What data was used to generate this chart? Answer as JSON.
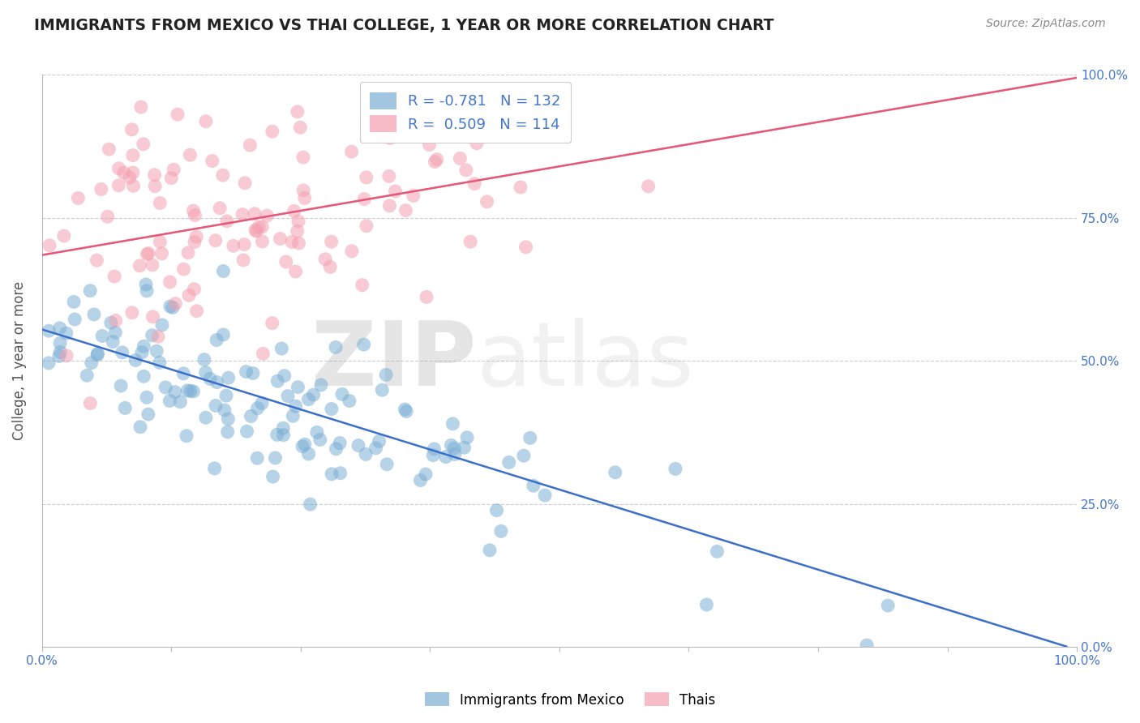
{
  "title": "IMMIGRANTS FROM MEXICO VS THAI COLLEGE, 1 YEAR OR MORE CORRELATION CHART",
  "source_text": "Source: ZipAtlas.com",
  "ylabel": "College, 1 year or more",
  "legend_line1": "R = -0.781   N = 132",
  "legend_line2": "R =  0.509   N = 114",
  "legend_label1": "Immigrants from Mexico",
  "legend_label2": "Thais",
  "xlim": [
    0.0,
    1.0
  ],
  "ylim": [
    0.0,
    1.0
  ],
  "xticks": [
    0.0,
    0.125,
    0.25,
    0.375,
    0.5,
    0.625,
    0.75,
    0.875,
    1.0
  ],
  "yticks": [
    0.0,
    0.25,
    0.5,
    0.75,
    1.0
  ],
  "xtick_labels_show": [
    "0.0%",
    "100.0%"
  ],
  "ytick_labels": [
    "0.0%",
    "25.0%",
    "50.0%",
    "75.0%",
    "100.0%"
  ],
  "blue_color": "#7BAFD4",
  "pink_color": "#F4A0B0",
  "blue_line_color": "#3B6FC9",
  "pink_line_color": "#E85678",
  "background_color": "#FFFFFF",
  "grid_color": "#CCCCCC",
  "title_color": "#222222",
  "axis_label_color": "#555555",
  "tick_label_color": "#4477CC",
  "blue_scatter_seed": 42,
  "pink_scatter_seed": 99,
  "blue_n": 132,
  "pink_n": 114,
  "blue_intercept": 0.555,
  "blue_slope": -0.56,
  "pink_intercept": 0.685,
  "pink_slope": 0.31
}
